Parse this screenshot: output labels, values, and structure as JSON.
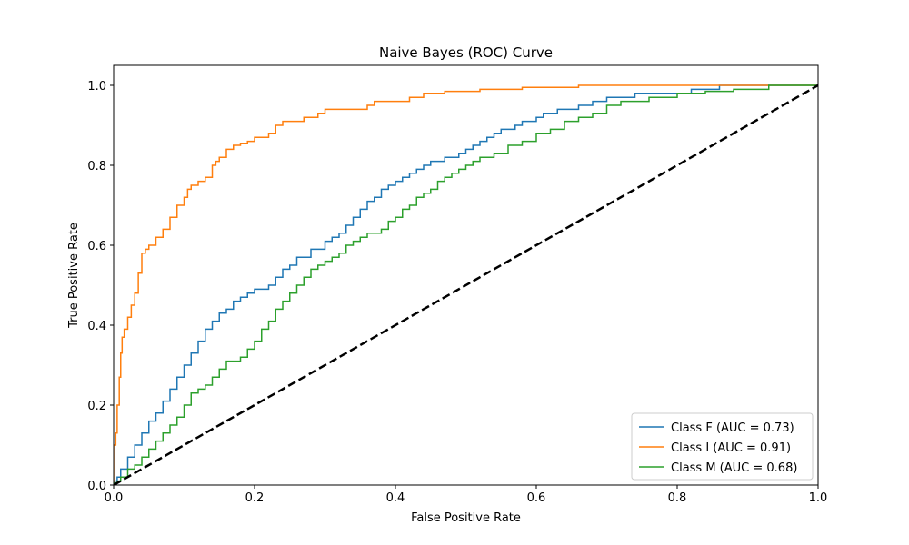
{
  "chart_data": {
    "type": "line",
    "title": "Naive Bayes (ROC) Curve",
    "xlabel": "False Positive Rate",
    "ylabel": "True Positive Rate",
    "xlim": [
      0.0,
      1.0
    ],
    "ylim": [
      0.0,
      1.05
    ],
    "x_ticks": [
      0.0,
      0.2,
      0.4,
      0.6,
      0.8,
      1.0
    ],
    "y_ticks": [
      0.0,
      0.2,
      0.4,
      0.6,
      0.8,
      1.0
    ],
    "x_tick_labels": [
      "0.0",
      "0.2",
      "0.4",
      "0.6",
      "0.8",
      "1.0"
    ],
    "y_tick_labels": [
      "0.0",
      "0.2",
      "0.4",
      "0.6",
      "0.8",
      "1.0"
    ],
    "grid": false,
    "legend_position": "lower-right",
    "series": [
      {
        "name": "Class F (AUC = 0.73)",
        "color": "#1f77b4",
        "points": [
          [
            0,
            0
          ],
          [
            0.005,
            0.01
          ],
          [
            0.01,
            0.02
          ],
          [
            0.02,
            0.04
          ],
          [
            0.03,
            0.07
          ],
          [
            0.04,
            0.1
          ],
          [
            0.05,
            0.13
          ],
          [
            0.06,
            0.16
          ],
          [
            0.07,
            0.18
          ],
          [
            0.08,
            0.21
          ],
          [
            0.09,
            0.24
          ],
          [
            0.1,
            0.27
          ],
          [
            0.11,
            0.3
          ],
          [
            0.12,
            0.33
          ],
          [
            0.13,
            0.36
          ],
          [
            0.14,
            0.39
          ],
          [
            0.15,
            0.41
          ],
          [
            0.16,
            0.43
          ],
          [
            0.17,
            0.44
          ],
          [
            0.18,
            0.46
          ],
          [
            0.19,
            0.47
          ],
          [
            0.2,
            0.48
          ],
          [
            0.22,
            0.49
          ],
          [
            0.23,
            0.5
          ],
          [
            0.24,
            0.52
          ],
          [
            0.25,
            0.54
          ],
          [
            0.26,
            0.55
          ],
          [
            0.28,
            0.57
          ],
          [
            0.3,
            0.59
          ],
          [
            0.31,
            0.61
          ],
          [
            0.32,
            0.62
          ],
          [
            0.33,
            0.63
          ],
          [
            0.34,
            0.65
          ],
          [
            0.35,
            0.67
          ],
          [
            0.36,
            0.69
          ],
          [
            0.37,
            0.71
          ],
          [
            0.38,
            0.72
          ],
          [
            0.39,
            0.74
          ],
          [
            0.4,
            0.75
          ],
          [
            0.41,
            0.76
          ],
          [
            0.42,
            0.77
          ],
          [
            0.43,
            0.78
          ],
          [
            0.44,
            0.79
          ],
          [
            0.45,
            0.8
          ],
          [
            0.47,
            0.81
          ],
          [
            0.49,
            0.82
          ],
          [
            0.5,
            0.83
          ],
          [
            0.51,
            0.84
          ],
          [
            0.52,
            0.85
          ],
          [
            0.53,
            0.86
          ],
          [
            0.54,
            0.87
          ],
          [
            0.55,
            0.88
          ],
          [
            0.57,
            0.89
          ],
          [
            0.58,
            0.9
          ],
          [
            0.6,
            0.91
          ],
          [
            0.61,
            0.92
          ],
          [
            0.63,
            0.93
          ],
          [
            0.66,
            0.94
          ],
          [
            0.68,
            0.95
          ],
          [
            0.7,
            0.96
          ],
          [
            0.74,
            0.97
          ],
          [
            0.77,
            0.98
          ],
          [
            0.82,
            0.98
          ],
          [
            0.86,
            0.99
          ],
          [
            0.9,
            1.0
          ],
          [
            1.0,
            1.0
          ]
        ]
      },
      {
        "name": "Class I (AUC = 0.91)",
        "color": "#ff7f0e",
        "points": [
          [
            0,
            0
          ],
          [
            0,
            0.05
          ],
          [
            0.003,
            0.1
          ],
          [
            0.005,
            0.13
          ],
          [
            0.008,
            0.2
          ],
          [
            0.01,
            0.27
          ],
          [
            0.012,
            0.33
          ],
          [
            0.015,
            0.37
          ],
          [
            0.02,
            0.39
          ],
          [
            0.025,
            0.42
          ],
          [
            0.03,
            0.45
          ],
          [
            0.035,
            0.48
          ],
          [
            0.04,
            0.53
          ],
          [
            0.045,
            0.58
          ],
          [
            0.05,
            0.59
          ],
          [
            0.06,
            0.6
          ],
          [
            0.07,
            0.62
          ],
          [
            0.08,
            0.64
          ],
          [
            0.09,
            0.67
          ],
          [
            0.1,
            0.7
          ],
          [
            0.105,
            0.72
          ],
          [
            0.11,
            0.74
          ],
          [
            0.12,
            0.75
          ],
          [
            0.13,
            0.76
          ],
          [
            0.14,
            0.77
          ],
          [
            0.145,
            0.8
          ],
          [
            0.15,
            0.81
          ],
          [
            0.16,
            0.82
          ],
          [
            0.17,
            0.84
          ],
          [
            0.18,
            0.85
          ],
          [
            0.19,
            0.855
          ],
          [
            0.2,
            0.86
          ],
          [
            0.21,
            0.87
          ],
          [
            0.22,
            0.87
          ],
          [
            0.23,
            0.88
          ],
          [
            0.24,
            0.9
          ],
          [
            0.25,
            0.91
          ],
          [
            0.27,
            0.91
          ],
          [
            0.29,
            0.92
          ],
          [
            0.3,
            0.93
          ],
          [
            0.32,
            0.94
          ],
          [
            0.36,
            0.94
          ],
          [
            0.37,
            0.95
          ],
          [
            0.42,
            0.96
          ],
          [
            0.44,
            0.97
          ],
          [
            0.47,
            0.98
          ],
          [
            0.52,
            0.985
          ],
          [
            0.58,
            0.99
          ],
          [
            0.66,
            0.995
          ],
          [
            0.76,
            1.0
          ],
          [
            1.0,
            1.0
          ]
        ]
      },
      {
        "name": "Class M (AUC = 0.68)",
        "color": "#2ca02c",
        "points": [
          [
            0,
            0
          ],
          [
            0.005,
            0.005
          ],
          [
            0.01,
            0.01
          ],
          [
            0.02,
            0.02
          ],
          [
            0.03,
            0.04
          ],
          [
            0.04,
            0.05
          ],
          [
            0.05,
            0.07
          ],
          [
            0.06,
            0.09
          ],
          [
            0.07,
            0.11
          ],
          [
            0.08,
            0.13
          ],
          [
            0.09,
            0.15
          ],
          [
            0.1,
            0.17
          ],
          [
            0.11,
            0.2
          ],
          [
            0.12,
            0.23
          ],
          [
            0.13,
            0.24
          ],
          [
            0.14,
            0.25
          ],
          [
            0.15,
            0.27
          ],
          [
            0.16,
            0.29
          ],
          [
            0.18,
            0.31
          ],
          [
            0.19,
            0.32
          ],
          [
            0.2,
            0.34
          ],
          [
            0.21,
            0.36
          ],
          [
            0.22,
            0.39
          ],
          [
            0.23,
            0.41
          ],
          [
            0.24,
            0.44
          ],
          [
            0.25,
            0.46
          ],
          [
            0.26,
            0.48
          ],
          [
            0.27,
            0.5
          ],
          [
            0.28,
            0.52
          ],
          [
            0.29,
            0.54
          ],
          [
            0.3,
            0.55
          ],
          [
            0.31,
            0.56
          ],
          [
            0.32,
            0.57
          ],
          [
            0.33,
            0.58
          ],
          [
            0.34,
            0.6
          ],
          [
            0.35,
            0.61
          ],
          [
            0.36,
            0.62
          ],
          [
            0.38,
            0.63
          ],
          [
            0.39,
            0.64
          ],
          [
            0.4,
            0.66
          ],
          [
            0.41,
            0.67
          ],
          [
            0.42,
            0.69
          ],
          [
            0.43,
            0.7
          ],
          [
            0.44,
            0.72
          ],
          [
            0.45,
            0.73
          ],
          [
            0.46,
            0.74
          ],
          [
            0.47,
            0.76
          ],
          [
            0.48,
            0.77
          ],
          [
            0.49,
            0.78
          ],
          [
            0.5,
            0.79
          ],
          [
            0.51,
            0.8
          ],
          [
            0.52,
            0.81
          ],
          [
            0.54,
            0.82
          ],
          [
            0.56,
            0.83
          ],
          [
            0.58,
            0.85
          ],
          [
            0.6,
            0.86
          ],
          [
            0.62,
            0.88
          ],
          [
            0.64,
            0.89
          ],
          [
            0.66,
            0.91
          ],
          [
            0.68,
            0.92
          ],
          [
            0.7,
            0.93
          ],
          [
            0.72,
            0.95
          ],
          [
            0.76,
            0.96
          ],
          [
            0.8,
            0.97
          ],
          [
            0.84,
            0.98
          ],
          [
            0.88,
            0.985
          ],
          [
            0.93,
            0.99
          ],
          [
            0.97,
            1.0
          ],
          [
            1.0,
            1.0
          ]
        ]
      }
    ],
    "reference_line": {
      "color": "#000000",
      "style": "dashed",
      "points": [
        [
          0,
          0
        ],
        [
          1,
          1
        ]
      ]
    }
  }
}
